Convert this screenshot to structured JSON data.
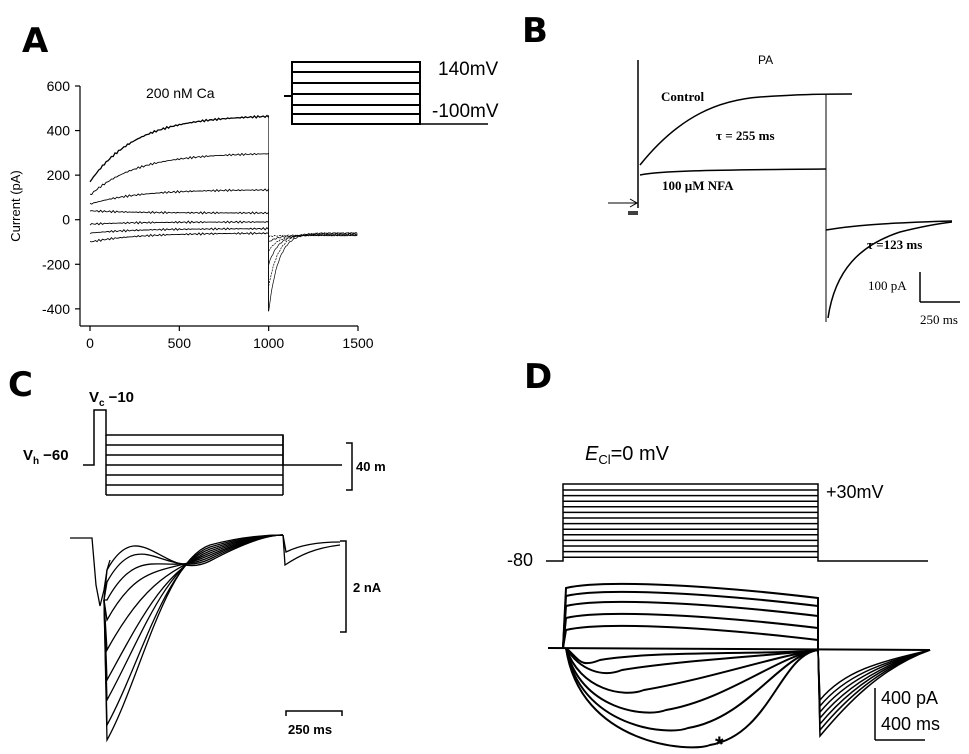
{
  "panels": {
    "a": {
      "letter": "A",
      "annotation": "200 nM Ca",
      "protocol_top": "140mV",
      "protocol_bottom": "-100mV"
    },
    "b": {
      "letter": "B",
      "header": "PA",
      "control_label": "Control",
      "tau_control": "τ = 255 ms",
      "nfa_label": "100 µM NFA",
      "tau_tail": "τ =123 ms",
      "scale_current": "100 pA",
      "scale_time": "250 ms"
    },
    "c": {
      "letter": "C",
      "vc_label": "V",
      "vc_sub": "c",
      "vc_value": "−10",
      "vh_label": "V",
      "vh_sub": "h",
      "vh_value": "−60",
      "scale_voltage": "40 m",
      "scale_current": "2 nA",
      "scale_time": "250 ms"
    },
    "d": {
      "letter": "D",
      "ecl_symbol": "E",
      "ecl_sub": "Cl",
      "ecl_value": "=0 mV",
      "top_voltage": "+30mV",
      "holding": "-80",
      "scale_current": "400 pA",
      "scale_time": "400 ms",
      "asterisk": "*"
    }
  },
  "chart_data": {
    "type": "line",
    "panel": "A",
    "xlabel": "",
    "ylabel": "Current (pA)",
    "xlim": [
      0,
      1500
    ],
    "ylim": [
      -450,
      600
    ],
    "x_ticks": [
      0,
      500,
      1000,
      1500
    ],
    "y_ticks": [
      600,
      400,
      200,
      0,
      -200,
      -400
    ],
    "grid": false,
    "test_pulse_traces": [
      {
        "start": 170,
        "steady": 470
      },
      {
        "start": 110,
        "steady": 300
      },
      {
        "start": 70,
        "steady": 135
      },
      {
        "start": 40,
        "steady": 30
      },
      {
        "start": -20,
        "steady": -10
      },
      {
        "start": -60,
        "steady": -40
      },
      {
        "start": -100,
        "steady": -60
      }
    ],
    "tail_currents": [
      {
        "peak": -410,
        "end": -60
      },
      {
        "peak": -300,
        "end": -60
      },
      {
        "peak": -200,
        "end": -65
      },
      {
        "peak": -140,
        "end": -70
      },
      {
        "peak": -100,
        "end": -70
      },
      {
        "peak": -75,
        "end": -70
      }
    ]
  }
}
